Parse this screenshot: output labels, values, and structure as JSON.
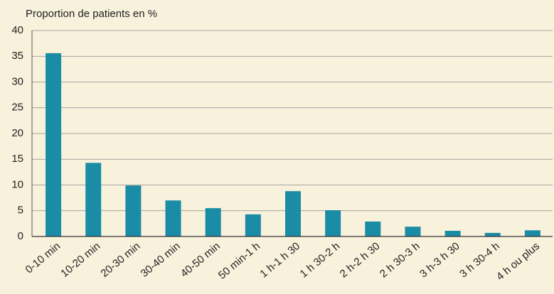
{
  "chart_data": {
    "type": "bar",
    "title": "Proportion de patients en %",
    "categories": [
      "0-10 min",
      "10-20 min",
      "20-30 min",
      "30-40 min",
      "40-50 min",
      "50 min-1 h",
      "1 h-1 h 30",
      "1 h 30-2 h",
      "2 h-2 h 30",
      "2 h 30-3 h",
      "3 h-3 h 30",
      "3 h 30-4 h",
      "4 h ou plus"
    ],
    "values": [
      35.6,
      14.3,
      9.9,
      7.0,
      5.5,
      4.3,
      8.8,
      5.1,
      2.9,
      1.9,
      1.1,
      0.7,
      1.2
    ],
    "color": "#1a8ca6",
    "ylim": [
      0,
      40
    ],
    "yticks": [
      0,
      5,
      10,
      15,
      20,
      25,
      30,
      35,
      40
    ],
    "grid": true
  }
}
